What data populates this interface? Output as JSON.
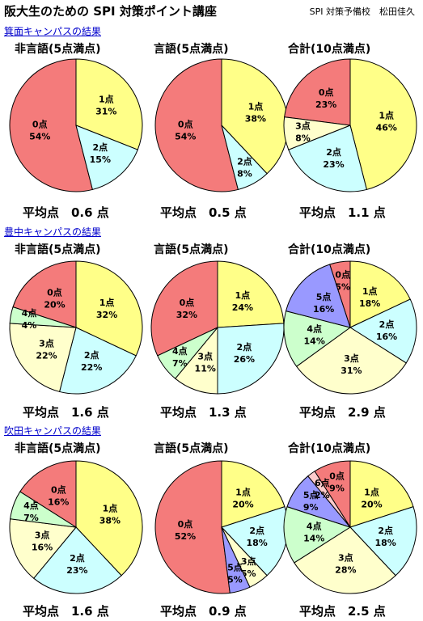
{
  "header": {
    "title": "阪大生のための SPI 対策ポイント講座",
    "author": "SPI 対策予備校　松田佳久"
  },
  "colors": {
    "0": "#f47b7b",
    "1": "#ffff88",
    "2": "#ccffff",
    "3": "#ffffcc",
    "4": "#ccffcc",
    "5": "#9999ff",
    "6": "#ffcccc"
  },
  "sections": [
    {
      "title": "箕面キャンパスの結果"
    },
    {
      "title": "豊中キャンパスの結果"
    },
    {
      "title": "吹田キャンパスの結果"
    }
  ],
  "averages": [
    [
      "平均点　0.6 点",
      "平均点　0.5 点",
      "平均点　1.1 点"
    ],
    [
      "平均点　1.6 点",
      "平均点　1.3 点",
      "平均点　2.9 点"
    ],
    [
      "平均点　1.6 点",
      "平均点　0.9 点",
      "平均点　2.5 点"
    ]
  ],
  "chart_data": [
    {
      "type": "pie",
      "title": "非言語(5点満点)",
      "slices": [
        {
          "label": "0点",
          "value": 54,
          "color_key": "0"
        },
        {
          "label": "1点",
          "value": 31,
          "color_key": "1"
        },
        {
          "label": "2点",
          "value": 15,
          "color_key": "2"
        }
      ]
    },
    {
      "type": "pie",
      "title": "言語(5点満点)",
      "slices": [
        {
          "label": "0点",
          "value": 54,
          "color_key": "0"
        },
        {
          "label": "1点",
          "value": 38,
          "color_key": "1"
        },
        {
          "label": "2点",
          "value": 8,
          "color_key": "2"
        }
      ]
    },
    {
      "type": "pie",
      "title": "合計(10点満点)",
      "slices": [
        {
          "label": "0点",
          "value": 23,
          "color_key": "0"
        },
        {
          "label": "1点",
          "value": 46,
          "color_key": "1"
        },
        {
          "label": "2点",
          "value": 23,
          "color_key": "2"
        },
        {
          "label": "3点",
          "value": 8,
          "color_key": "3"
        }
      ]
    },
    {
      "type": "pie",
      "title": "非言語(5点満点)",
      "slices": [
        {
          "label": "0点",
          "value": 20,
          "color_key": "0"
        },
        {
          "label": "1点",
          "value": 32,
          "color_key": "1"
        },
        {
          "label": "2点",
          "value": 22,
          "color_key": "2"
        },
        {
          "label": "3点",
          "value": 22,
          "color_key": "3"
        },
        {
          "label": "4点",
          "value": 4,
          "color_key": "4"
        }
      ]
    },
    {
      "type": "pie",
      "title": "言語(5点満点)",
      "slices": [
        {
          "label": "0点",
          "value": 32,
          "color_key": "0"
        },
        {
          "label": "1点",
          "value": 24,
          "color_key": "1"
        },
        {
          "label": "2点",
          "value": 26,
          "color_key": "2"
        },
        {
          "label": "3点",
          "value": 11,
          "color_key": "3"
        },
        {
          "label": "4点",
          "value": 7,
          "color_key": "4"
        }
      ]
    },
    {
      "type": "pie",
      "title": "合計(10点満点)",
      "slices": [
        {
          "label": "0点",
          "value": 5,
          "color_key": "0"
        },
        {
          "label": "1点",
          "value": 18,
          "color_key": "1"
        },
        {
          "label": "2点",
          "value": 16,
          "color_key": "2"
        },
        {
          "label": "3点",
          "value": 31,
          "color_key": "3"
        },
        {
          "label": "4点",
          "value": 14,
          "color_key": "4"
        },
        {
          "label": "5点",
          "value": 16,
          "color_key": "5"
        }
      ]
    },
    {
      "type": "pie",
      "title": "非言語(5点満点)",
      "slices": [
        {
          "label": "0点",
          "value": 16,
          "color_key": "0"
        },
        {
          "label": "1点",
          "value": 38,
          "color_key": "1"
        },
        {
          "label": "2点",
          "value": 23,
          "color_key": "2"
        },
        {
          "label": "3点",
          "value": 16,
          "color_key": "3"
        },
        {
          "label": "4点",
          "value": 7,
          "color_key": "4"
        }
      ]
    },
    {
      "type": "pie",
      "title": "言語(5点満点)",
      "slices": [
        {
          "label": "0点",
          "value": 52,
          "color_key": "0"
        },
        {
          "label": "1点",
          "value": 20,
          "color_key": "1"
        },
        {
          "label": "2点",
          "value": 18,
          "color_key": "2"
        },
        {
          "label": "3点",
          "value": 5,
          "color_key": "3"
        },
        {
          "label": "5点",
          "value": 5,
          "color_key": "5"
        }
      ]
    },
    {
      "type": "pie",
      "title": "合計(10点満点)",
      "slices": [
        {
          "label": "0点",
          "value": 9,
          "color_key": "0"
        },
        {
          "label": "1点",
          "value": 20,
          "color_key": "1"
        },
        {
          "label": "2点",
          "value": 18,
          "color_key": "2"
        },
        {
          "label": "3点",
          "value": 28,
          "color_key": "3"
        },
        {
          "label": "4点",
          "value": 14,
          "color_key": "4"
        },
        {
          "label": "5点",
          "value": 9,
          "color_key": "5"
        },
        {
          "label": "6点",
          "value": 2,
          "color_key": "6"
        }
      ]
    }
  ]
}
